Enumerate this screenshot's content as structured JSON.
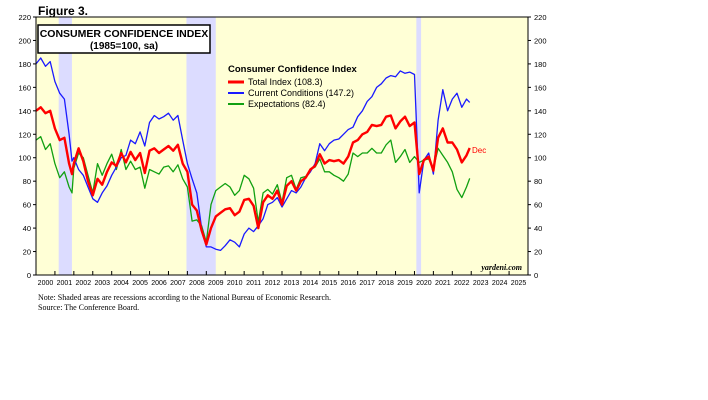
{
  "figure_label": "Figure 3.",
  "notes": {
    "line1": "Note: Shaded areas are recessions according to the National Bureau of Economic Research.",
    "line2": "Source: The Conference Board."
  },
  "chart_data": {
    "type": "line",
    "title": "CONSUMER CONFIDENCE INDEX",
    "subtitle": "(1985=100, sa)",
    "legend_title": "Consumer Confidence Index",
    "legend_placement": "top-center",
    "watermark": "yardeni.com",
    "end_label": "Dec",
    "x_range": [
      2000,
      2026
    ],
    "ylim": [
      0,
      220
    ],
    "y_ticks": [
      0,
      20,
      40,
      60,
      80,
      100,
      120,
      140,
      160,
      180,
      200,
      220
    ],
    "x_tick_labels": [
      "2000",
      "2001",
      "2002",
      "2003",
      "2004",
      "2005",
      "2006",
      "2007",
      "2008",
      "2009",
      "2010",
      "2011",
      "2012",
      "2013",
      "2014",
      "2015",
      "2016",
      "2017",
      "2018",
      "2019",
      "2020",
      "2021",
      "2022",
      "2023",
      "2024",
      "2025"
    ],
    "recessions": [
      [
        2001.2,
        2001.9
      ],
      [
        2007.95,
        2009.5
      ],
      [
        2020.1,
        2020.35
      ]
    ],
    "background_color": "#ffffd6",
    "recession_color": "#dcdcff",
    "series": [
      {
        "name": "Total Index (108.3)",
        "color": "#ff0000",
        "points": [
          [
            2000.0,
            140
          ],
          [
            2000.25,
            143
          ],
          [
            2000.5,
            138
          ],
          [
            2000.75,
            140
          ],
          [
            2001.0,
            125
          ],
          [
            2001.25,
            115
          ],
          [
            2001.5,
            117
          ],
          [
            2001.75,
            95
          ],
          [
            2001.9,
            86
          ],
          [
            2002.0,
            95
          ],
          [
            2002.25,
            108
          ],
          [
            2002.5,
            97
          ],
          [
            2002.75,
            80
          ],
          [
            2003.0,
            68
          ],
          [
            2003.25,
            82
          ],
          [
            2003.5,
            77
          ],
          [
            2003.75,
            88
          ],
          [
            2004.0,
            96
          ],
          [
            2004.25,
            93
          ],
          [
            2004.5,
            104
          ],
          [
            2004.75,
            96
          ],
          [
            2005.0,
            105
          ],
          [
            2005.25,
            98
          ],
          [
            2005.5,
            104
          ],
          [
            2005.75,
            87
          ],
          [
            2006.0,
            106
          ],
          [
            2006.25,
            108
          ],
          [
            2006.5,
            104
          ],
          [
            2006.75,
            107
          ],
          [
            2007.0,
            110
          ],
          [
            2007.25,
            106
          ],
          [
            2007.5,
            111
          ],
          [
            2007.75,
            95
          ],
          [
            2008.0,
            88
          ],
          [
            2008.25,
            60
          ],
          [
            2008.5,
            55
          ],
          [
            2008.75,
            38
          ],
          [
            2009.0,
            26
          ],
          [
            2009.25,
            40
          ],
          [
            2009.5,
            50
          ],
          [
            2009.75,
            53
          ],
          [
            2010.0,
            56
          ],
          [
            2010.25,
            57
          ],
          [
            2010.5,
            51
          ],
          [
            2010.75,
            54
          ],
          [
            2011.0,
            64
          ],
          [
            2011.25,
            65
          ],
          [
            2011.5,
            59
          ],
          [
            2011.75,
            40
          ],
          [
            2012.0,
            62
          ],
          [
            2012.25,
            68
          ],
          [
            2012.5,
            65
          ],
          [
            2012.75,
            72
          ],
          [
            2013.0,
            60
          ],
          [
            2013.25,
            76
          ],
          [
            2013.5,
            80
          ],
          [
            2013.75,
            72
          ],
          [
            2014.0,
            80
          ],
          [
            2014.25,
            83
          ],
          [
            2014.5,
            90
          ],
          [
            2014.75,
            93
          ],
          [
            2015.0,
            103
          ],
          [
            2015.25,
            95
          ],
          [
            2015.5,
            98
          ],
          [
            2015.75,
            97
          ],
          [
            2016.0,
            98
          ],
          [
            2016.25,
            95
          ],
          [
            2016.5,
            101
          ],
          [
            2016.75,
            113
          ],
          [
            2017.0,
            115
          ],
          [
            2017.25,
            120
          ],
          [
            2017.5,
            122
          ],
          [
            2017.75,
            128
          ],
          [
            2018.0,
            127
          ],
          [
            2018.25,
            128
          ],
          [
            2018.5,
            135
          ],
          [
            2018.75,
            136
          ],
          [
            2019.0,
            125
          ],
          [
            2019.25,
            131
          ],
          [
            2019.5,
            135
          ],
          [
            2019.75,
            127
          ],
          [
            2020.0,
            130
          ],
          [
            2020.25,
            86
          ],
          [
            2020.5,
            98
          ],
          [
            2020.75,
            101
          ],
          [
            2021.0,
            89
          ],
          [
            2021.25,
            117
          ],
          [
            2021.5,
            125
          ],
          [
            2021.75,
            113
          ],
          [
            2022.0,
            113
          ],
          [
            2022.25,
            107
          ],
          [
            2022.5,
            96
          ],
          [
            2022.75,
            102
          ],
          [
            2022.92,
            108.3
          ]
        ]
      },
      {
        "name": "Current Conditions (147.2)",
        "color": "#1a1aff",
        "points": [
          [
            2000.0,
            180
          ],
          [
            2000.25,
            185
          ],
          [
            2000.5,
            178
          ],
          [
            2000.75,
            182
          ],
          [
            2001.0,
            165
          ],
          [
            2001.25,
            155
          ],
          [
            2001.5,
            150
          ],
          [
            2001.75,
            120
          ],
          [
            2001.9,
            97
          ],
          [
            2002.0,
            100
          ],
          [
            2002.25,
            90
          ],
          [
            2002.5,
            85
          ],
          [
            2002.75,
            75
          ],
          [
            2003.0,
            65
          ],
          [
            2003.25,
            62
          ],
          [
            2003.5,
            70
          ],
          [
            2003.75,
            76
          ],
          [
            2004.0,
            85
          ],
          [
            2004.25,
            92
          ],
          [
            2004.5,
            100
          ],
          [
            2004.75,
            102
          ],
          [
            2005.0,
            115
          ],
          [
            2005.25,
            112
          ],
          [
            2005.5,
            122
          ],
          [
            2005.75,
            110
          ],
          [
            2006.0,
            130
          ],
          [
            2006.25,
            136
          ],
          [
            2006.5,
            133
          ],
          [
            2006.75,
            135
          ],
          [
            2007.0,
            138
          ],
          [
            2007.25,
            132
          ],
          [
            2007.5,
            136
          ],
          [
            2007.75,
            115
          ],
          [
            2008.0,
            95
          ],
          [
            2008.25,
            82
          ],
          [
            2008.5,
            70
          ],
          [
            2008.75,
            40
          ],
          [
            2009.0,
            24
          ],
          [
            2009.25,
            24
          ],
          [
            2009.5,
            22
          ],
          [
            2009.75,
            21
          ],
          [
            2010.0,
            25
          ],
          [
            2010.25,
            30
          ],
          [
            2010.5,
            28
          ],
          [
            2010.75,
            24
          ],
          [
            2011.0,
            35
          ],
          [
            2011.25,
            40
          ],
          [
            2011.5,
            37
          ],
          [
            2011.75,
            42
          ],
          [
            2012.0,
            48
          ],
          [
            2012.25,
            60
          ],
          [
            2012.5,
            62
          ],
          [
            2012.75,
            66
          ],
          [
            2013.0,
            58
          ],
          [
            2013.25,
            65
          ],
          [
            2013.5,
            72
          ],
          [
            2013.75,
            70
          ],
          [
            2014.0,
            75
          ],
          [
            2014.25,
            83
          ],
          [
            2014.5,
            88
          ],
          [
            2014.75,
            95
          ],
          [
            2015.0,
            112
          ],
          [
            2015.25,
            106
          ],
          [
            2015.5,
            112
          ],
          [
            2015.75,
            115
          ],
          [
            2016.0,
            116
          ],
          [
            2016.25,
            120
          ],
          [
            2016.5,
            124
          ],
          [
            2016.75,
            126
          ],
          [
            2017.0,
            135
          ],
          [
            2017.25,
            140
          ],
          [
            2017.5,
            148
          ],
          [
            2017.75,
            152
          ],
          [
            2018.0,
            160
          ],
          [
            2018.25,
            163
          ],
          [
            2018.5,
            168
          ],
          [
            2018.75,
            170
          ],
          [
            2019.0,
            169
          ],
          [
            2019.25,
            174
          ],
          [
            2019.5,
            172
          ],
          [
            2019.75,
            173
          ],
          [
            2020.0,
            171
          ],
          [
            2020.25,
            70
          ],
          [
            2020.5,
            98
          ],
          [
            2020.75,
            104
          ],
          [
            2021.0,
            86
          ],
          [
            2021.25,
            132
          ],
          [
            2021.5,
            158
          ],
          [
            2021.75,
            140
          ],
          [
            2022.0,
            150
          ],
          [
            2022.25,
            155
          ],
          [
            2022.5,
            143
          ],
          [
            2022.75,
            150
          ],
          [
            2022.92,
            147.2
          ]
        ]
      },
      {
        "name": "Expectations (82.4)",
        "color": "#11a011",
        "points": [
          [
            2000.0,
            115
          ],
          [
            2000.25,
            118
          ],
          [
            2000.5,
            107
          ],
          [
            2000.75,
            112
          ],
          [
            2001.0,
            95
          ],
          [
            2001.25,
            83
          ],
          [
            2001.5,
            88
          ],
          [
            2001.75,
            75
          ],
          [
            2001.9,
            70
          ],
          [
            2002.0,
            91
          ],
          [
            2002.25,
            104
          ],
          [
            2002.5,
            100
          ],
          [
            2002.75,
            85
          ],
          [
            2003.0,
            70
          ],
          [
            2003.25,
            95
          ],
          [
            2003.5,
            85
          ],
          [
            2003.75,
            95
          ],
          [
            2004.0,
            103
          ],
          [
            2004.25,
            90
          ],
          [
            2004.5,
            107
          ],
          [
            2004.75,
            90
          ],
          [
            2005.0,
            97
          ],
          [
            2005.25,
            90
          ],
          [
            2005.5,
            92
          ],
          [
            2005.75,
            74
          ],
          [
            2006.0,
            90
          ],
          [
            2006.25,
            88
          ],
          [
            2006.5,
            86
          ],
          [
            2006.75,
            92
          ],
          [
            2007.0,
            93
          ],
          [
            2007.25,
            88
          ],
          [
            2007.5,
            94
          ],
          [
            2007.75,
            82
          ],
          [
            2008.0,
            75
          ],
          [
            2008.25,
            46
          ],
          [
            2008.5,
            47
          ],
          [
            2008.75,
            42
          ],
          [
            2009.0,
            28
          ],
          [
            2009.25,
            60
          ],
          [
            2009.5,
            72
          ],
          [
            2009.75,
            75
          ],
          [
            2010.0,
            78
          ],
          [
            2010.25,
            75
          ],
          [
            2010.5,
            68
          ],
          [
            2010.75,
            72
          ],
          [
            2011.0,
            85
          ],
          [
            2011.25,
            82
          ],
          [
            2011.5,
            74
          ],
          [
            2011.75,
            45
          ],
          [
            2012.0,
            70
          ],
          [
            2012.25,
            73
          ],
          [
            2012.5,
            69
          ],
          [
            2012.75,
            77
          ],
          [
            2013.0,
            62
          ],
          [
            2013.25,
            83
          ],
          [
            2013.5,
            85
          ],
          [
            2013.75,
            73
          ],
          [
            2014.0,
            83
          ],
          [
            2014.25,
            84
          ],
          [
            2014.5,
            90
          ],
          [
            2014.75,
            92
          ],
          [
            2015.0,
            99
          ],
          [
            2015.25,
            88
          ],
          [
            2015.5,
            88
          ],
          [
            2015.75,
            85
          ],
          [
            2016.0,
            83
          ],
          [
            2016.25,
            80
          ],
          [
            2016.5,
            86
          ],
          [
            2016.75,
            104
          ],
          [
            2017.0,
            101
          ],
          [
            2017.25,
            104
          ],
          [
            2017.5,
            104
          ],
          [
            2017.75,
            108
          ],
          [
            2018.0,
            104
          ],
          [
            2018.25,
            104
          ],
          [
            2018.5,
            111
          ],
          [
            2018.75,
            115
          ],
          [
            2019.0,
            96
          ],
          [
            2019.25,
            101
          ],
          [
            2019.5,
            107
          ],
          [
            2019.75,
            96
          ],
          [
            2020.0,
            101
          ],
          [
            2020.25,
            96
          ],
          [
            2020.5,
            98
          ],
          [
            2020.75,
            99
          ],
          [
            2021.0,
            91
          ],
          [
            2021.25,
            108
          ],
          [
            2021.5,
            102
          ],
          [
            2021.75,
            96
          ],
          [
            2022.0,
            88
          ],
          [
            2022.25,
            73
          ],
          [
            2022.5,
            66
          ],
          [
            2022.75,
            75
          ],
          [
            2022.92,
            82.4
          ]
        ]
      }
    ]
  }
}
